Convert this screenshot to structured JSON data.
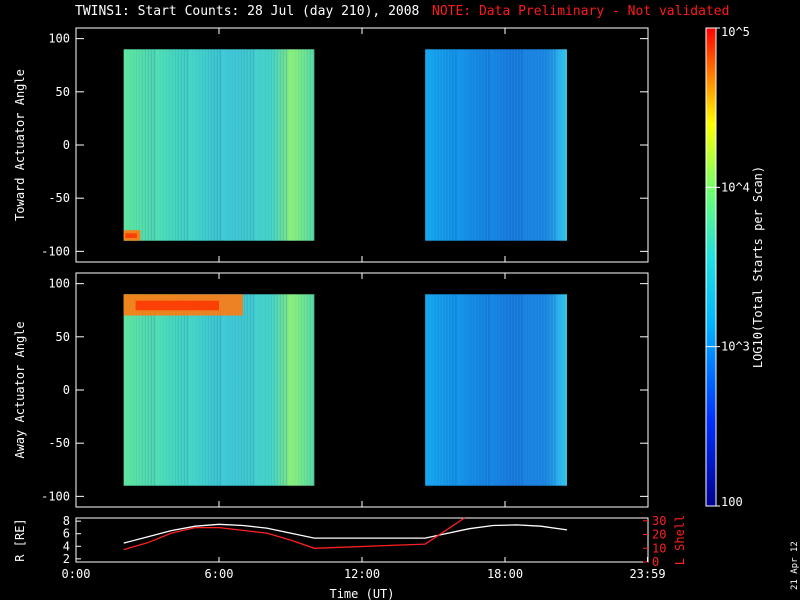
{
  "title": "TWINS1: Start Counts: 28 Jul (day 210), 2008",
  "note": "NOTE: Data Preliminary - Not validated",
  "date_stamp": "21 Apr 12",
  "colors": {
    "note": "#ff1a1a",
    "lshell": "#ff2020",
    "r_line": "#ffffff"
  },
  "chart_data": [
    {
      "type": "heatmap",
      "name": "toward",
      "ylabel": "Toward Actuator Angle",
      "ylim": [
        -110,
        110
      ],
      "yticks": [
        100,
        50,
        0,
        -50,
        -100
      ],
      "xlim": [
        0,
        24
      ],
      "data_segments": [
        [
          2.0,
          10.0
        ],
        [
          14.65,
          20.6
        ]
      ],
      "yrange_data": [
        -90,
        90
      ],
      "hot_spots": [
        {
          "t": [
            2.0,
            2.7
          ],
          "y": [
            -90,
            -80
          ],
          "level": "high"
        }
      ]
    },
    {
      "type": "heatmap",
      "name": "away",
      "ylabel": "Away Actuator Angle",
      "ylim": [
        -110,
        110
      ],
      "yticks": [
        100,
        50,
        0,
        -50,
        -100
      ],
      "xlim": [
        0,
        24
      ],
      "data_segments": [
        [
          2.0,
          10.0
        ],
        [
          14.65,
          20.6
        ]
      ],
      "yrange_data": [
        -90,
        90
      ],
      "hot_spots": [
        {
          "t": [
            2.0,
            7.0
          ],
          "y": [
            70,
            90
          ],
          "level": "high"
        }
      ]
    },
    {
      "type": "colorbar",
      "label": "LOG10(Total Starts per Scan)",
      "scale": "log",
      "range": [
        100,
        100000
      ],
      "tick_labels": [
        "10^5",
        "10^4",
        "10^3",
        "100"
      ],
      "tick_values": [
        100000,
        10000,
        1000,
        100
      ]
    },
    {
      "type": "line",
      "name": "orbit",
      "ylabel_left": "R [RE]",
      "ylabel_right": "L Shell",
      "xlabel": "Time (UT)",
      "xlim": [
        0,
        24
      ],
      "xtick_labels": [
        "0:00",
        "6:00",
        "12:00",
        "18:00",
        "23:59"
      ],
      "xtick_values": [
        0,
        6,
        12,
        18,
        23.98
      ],
      "ylim_left": [
        1.5,
        8.5
      ],
      "yticks_left": [
        8,
        6,
        4,
        2
      ],
      "ylim_right": [
        0,
        32
      ],
      "yticks_right": [
        30,
        20,
        10,
        0
      ],
      "series": [
        {
          "axis": "left",
          "x": [
            2.0,
            3,
            4,
            5,
            6,
            7,
            8,
            9,
            10.0,
            14.65,
            15.5,
            16.5,
            17.5,
            18.5,
            19.5,
            20.6
          ],
          "y": [
            4.5,
            5.5,
            6.5,
            7.2,
            7.5,
            7.3,
            6.9,
            6.1,
            5.3,
            5.3,
            6.0,
            6.8,
            7.3,
            7.4,
            7.2,
            6.6
          ]
        },
        {
          "axis": "right",
          "x": [
            2.0,
            3,
            4,
            5,
            6,
            7,
            8,
            9,
            10.0,
            14.65,
            16.3
          ],
          "y": [
            9,
            14,
            21,
            25,
            25,
            23,
            21,
            16,
            10,
            13,
            32
          ]
        }
      ]
    }
  ]
}
